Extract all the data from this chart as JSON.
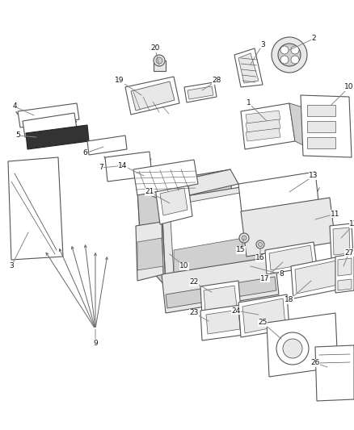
{
  "bg_color": "#ffffff",
  "fig_width": 4.38,
  "fig_height": 5.33,
  "dpi": 100,
  "ec": "#555555",
  "lw": 0.8,
  "label_color": "#111111",
  "line_color": "#888888",
  "font_size": 6.5
}
